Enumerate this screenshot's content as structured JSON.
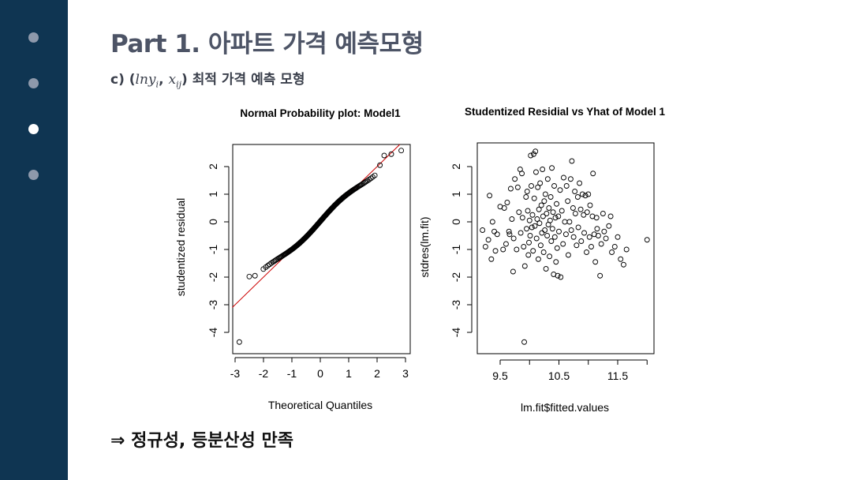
{
  "slide": {
    "title": "Part 1. 아파트 가격 예측모형",
    "subtitle_prefix": "c) (",
    "subtitle_math_a": "lny",
    "subtitle_math_a_sub": "i",
    "subtitle_comma": ", ",
    "subtitle_math_b": "x",
    "subtitle_math_b_sub": "ij",
    "subtitle_suffix": ") 최적 가격 예측 모형",
    "conclusion": "⇒  정규성, 등분산성 만족"
  },
  "sidebar": {
    "dot_count": 4,
    "active_index": 2
  },
  "colors": {
    "sidebar_bg": "#0f3552",
    "dot": "#8e99ab",
    "dot_active": "#ffffff",
    "ref_line": "#cc0000"
  },
  "chart_data": [
    {
      "type": "scatter",
      "title": "Normal Probability plot: Model1",
      "xlabel": "Theoretical Quantiles",
      "ylabel": "studentized residual",
      "xlim": [
        -3,
        3
      ],
      "ylim": [
        -4.5,
        2.8
      ],
      "xticks": [
        "-3",
        "-2",
        "-1",
        "0",
        "1",
        "2",
        "3"
      ],
      "yticks": [
        "-4",
        "-3",
        "-2",
        "-1",
        "0",
        "1",
        "2"
      ],
      "reference_line": {
        "intercept": 0,
        "slope": 1.0
      },
      "n_points": 200,
      "tail_points": [
        {
          "x": -2.85,
          "y": -4.35
        },
        {
          "x": -2.5,
          "y": -1.98
        },
        {
          "x": -2.3,
          "y": -1.95
        },
        {
          "x": 2.1,
          "y": 2.05
        },
        {
          "x": 2.25,
          "y": 2.4
        },
        {
          "x": 2.5,
          "y": 2.45
        },
        {
          "x": 2.85,
          "y": 2.58
        }
      ]
    },
    {
      "type": "scatter",
      "title": "Studentized Residial vs Yhat of Model 1",
      "xlabel": "lm.fit$fitted.values",
      "ylabel": "stdres(lm.fit)",
      "xlim": [
        9.1,
        12.1
      ],
      "ylim": [
        -4.5,
        2.8
      ],
      "xticks": [
        "9.5",
        "10.5",
        "11.5"
      ],
      "yticks": [
        "-4",
        "-3",
        "-2",
        "-1",
        "0",
        "1",
        "2"
      ],
      "points": [
        [
          9.2,
          -0.3
        ],
        [
          9.25,
          -0.9
        ],
        [
          9.3,
          -0.65
        ],
        [
          9.32,
          0.95
        ],
        [
          9.35,
          -1.35
        ],
        [
          9.37,
          0.0
        ],
        [
          9.4,
          -0.35
        ],
        [
          9.42,
          -1.05
        ],
        [
          9.45,
          -0.45
        ],
        [
          9.5,
          0.55
        ],
        [
          9.55,
          -1.0
        ],
        [
          9.57,
          0.5
        ],
        [
          9.6,
          -0.8
        ],
        [
          9.62,
          0.7
        ],
        [
          9.65,
          -0.35
        ],
        [
          9.66,
          -0.45
        ],
        [
          9.68,
          1.2
        ],
        [
          9.7,
          0.1
        ],
        [
          9.72,
          -1.8
        ],
        [
          9.73,
          -0.6
        ],
        [
          9.75,
          1.55
        ],
        [
          9.78,
          -1.0
        ],
        [
          9.8,
          1.25
        ],
        [
          9.82,
          0.35
        ],
        [
          9.84,
          1.9
        ],
        [
          9.85,
          -0.4
        ],
        [
          9.87,
          1.75
        ],
        [
          9.88,
          0.15
        ],
        [
          9.9,
          -0.9
        ],
        [
          9.91,
          -4.35
        ],
        [
          9.92,
          -1.6
        ],
        [
          9.94,
          0.9
        ],
        [
          9.95,
          -0.25
        ],
        [
          9.96,
          1.1
        ],
        [
          9.97,
          0.4
        ],
        [
          9.98,
          -1.2
        ],
        [
          9.99,
          -0.75
        ],
        [
          10.0,
          0.05
        ],
        [
          10.01,
          -0.5
        ],
        [
          10.02,
          2.4
        ],
        [
          10.03,
          1.3
        ],
        [
          10.04,
          -0.2
        ],
        [
          10.05,
          0.25
        ],
        [
          10.06,
          -1.05
        ],
        [
          10.07,
          2.45
        ],
        [
          10.08,
          0.85
        ],
        [
          10.09,
          -0.15
        ],
        [
          10.1,
          2.55
        ],
        [
          10.11,
          1.8
        ],
        [
          10.12,
          -0.6
        ],
        [
          10.13,
          0.1
        ],
        [
          10.14,
          1.25
        ],
        [
          10.15,
          -1.35
        ],
        [
          10.16,
          0.45
        ],
        [
          10.17,
          -0.05
        ],
        [
          10.18,
          1.4
        ],
        [
          10.19,
          -0.85
        ],
        [
          10.2,
          0.6
        ],
        [
          10.21,
          -0.4
        ],
        [
          10.22,
          1.9
        ],
        [
          10.23,
          0.2
        ],
        [
          10.24,
          -1.1
        ],
        [
          10.25,
          0.75
        ],
        [
          10.26,
          -0.3
        ],
        [
          10.27,
          1.0
        ],
        [
          10.28,
          -1.7
        ],
        [
          10.29,
          0.3
        ],
        [
          10.3,
          -0.5
        ],
        [
          10.31,
          1.55
        ],
        [
          10.32,
          -0.1
        ],
        [
          10.33,
          0.5
        ],
        [
          10.34,
          -1.25
        ],
        [
          10.35,
          0.05
        ],
        [
          10.36,
          0.9
        ],
        [
          10.37,
          -0.7
        ],
        [
          10.38,
          1.95
        ],
        [
          10.39,
          -0.25
        ],
        [
          10.4,
          0.35
        ],
        [
          10.41,
          -1.9
        ],
        [
          10.42,
          1.3
        ],
        [
          10.43,
          -0.55
        ],
        [
          10.44,
          0.15
        ],
        [
          10.45,
          -1.45
        ],
        [
          10.46,
          0.65
        ],
        [
          10.47,
          -0.95
        ],
        [
          10.48,
          -1.95
        ],
        [
          10.49,
          0.2
        ],
        [
          10.5,
          -0.35
        ],
        [
          10.52,
          1.15
        ],
        [
          10.53,
          -2.0
        ],
        [
          10.55,
          0.4
        ],
        [
          10.57,
          -0.8
        ],
        [
          10.58,
          1.6
        ],
        [
          10.6,
          0.0
        ],
        [
          10.62,
          -0.45
        ],
        [
          10.63,
          1.3
        ],
        [
          10.65,
          0.75
        ],
        [
          10.66,
          -1.2
        ],
        [
          10.68,
          0.0
        ],
        [
          10.7,
          1.55
        ],
        [
          10.71,
          -0.3
        ],
        [
          10.72,
          2.2
        ],
        [
          10.74,
          0.5
        ],
        [
          10.75,
          -0.55
        ],
        [
          10.77,
          1.1
        ],
        [
          10.78,
          0.3
        ],
        [
          10.8,
          -0.85
        ],
        [
          10.82,
          0.9
        ],
        [
          10.83,
          -0.2
        ],
        [
          10.85,
          1.4
        ],
        [
          10.87,
          0.45
        ],
        [
          10.88,
          -0.7
        ],
        [
          10.9,
          1.0
        ],
        [
          10.92,
          0.25
        ],
        [
          10.93,
          -0.4
        ],
        [
          10.95,
          0.95
        ],
        [
          10.97,
          -1.1
        ],
        [
          10.98,
          0.35
        ],
        [
          11.0,
          1.0
        ],
        [
          11.02,
          -0.55
        ],
        [
          11.03,
          0.6
        ],
        [
          11.05,
          -0.9
        ],
        [
          11.07,
          0.2
        ],
        [
          11.08,
          1.75
        ],
        [
          11.1,
          -0.45
        ],
        [
          11.12,
          -1.45
        ],
        [
          11.14,
          0.15
        ],
        [
          11.15,
          -0.25
        ],
        [
          11.17,
          -0.5
        ],
        [
          11.2,
          -1.95
        ],
        [
          11.22,
          -0.8
        ],
        [
          11.25,
          0.3
        ],
        [
          11.27,
          -0.35
        ],
        [
          11.3,
          -0.6
        ],
        [
          11.35,
          -0.15
        ],
        [
          11.38,
          0.2
        ],
        [
          11.4,
          -1.1
        ],
        [
          11.45,
          -0.9
        ],
        [
          11.5,
          -0.55
        ],
        [
          11.55,
          -1.35
        ],
        [
          11.6,
          -1.55
        ],
        [
          11.65,
          -1.0
        ],
        [
          12.0,
          -0.65
        ]
      ]
    }
  ],
  "axis_titles": {
    "qq_title": "Normal Probability plot: Model1",
    "qq_xlabel": "Theoretical Quantiles",
    "qq_ylabel": "studentized residual",
    "rv_title": "Studentized Residial vs Yhat of Model 1",
    "rv_xlabel": "lm.fit$fitted.values",
    "rv_ylabel": "stdres(lm.fit)"
  }
}
